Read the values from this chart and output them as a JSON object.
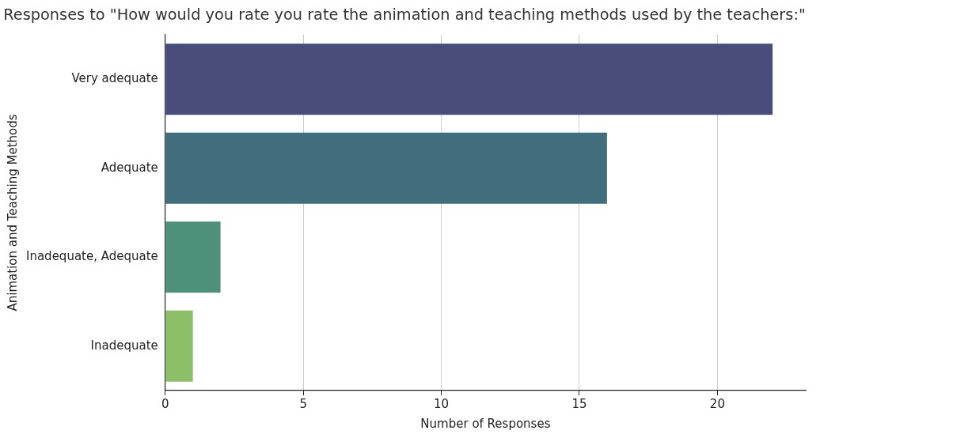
{
  "chart_data": {
    "type": "bar",
    "orientation": "horizontal",
    "title": "Responses to \"How would you rate you rate the animation and teaching methods used by the teachers:\"",
    "xlabel": "Number of Responses",
    "ylabel": "Animation and Teaching Methods",
    "categories": [
      "Very adequate",
      "Adequate",
      "Inadequate, Adequate",
      "Inadequate"
    ],
    "values": [
      22,
      16,
      2,
      1
    ],
    "colors": [
      "#484c7a",
      "#416e7c",
      "#4f907a",
      "#8cbe67"
    ],
    "xlim": [
      0,
      23.2
    ],
    "xticks": [
      0,
      5,
      10,
      15,
      20
    ],
    "grid": "x",
    "legend": false
  }
}
